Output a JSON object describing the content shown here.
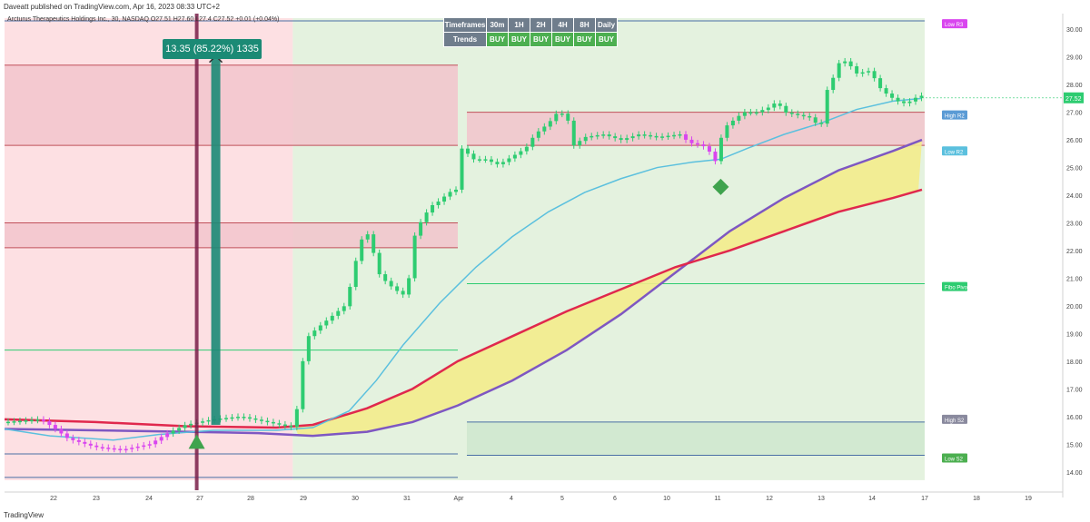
{
  "header": {
    "publisher_line": "Daveatt published on TradingView.com, Apr 16, 2023 08:33 UTC+2",
    "symbol_line": "Arcturus Therapeutics Holdings Inc., 30, NASDAQ  O27.51  H27.60  L27.4  C27.52  +0.01 (+0.04%)"
  },
  "footer": {
    "brand": "TradingView"
  },
  "trend_table": {
    "header_label": "Timeframes",
    "timeframes": [
      "30m",
      "1H",
      "2H",
      "4H",
      "8H",
      "Daily"
    ],
    "row_label": "Trends",
    "signals": [
      "BUY",
      "BUY",
      "BUY",
      "BUY",
      "BUY",
      "BUY"
    ]
  },
  "measure": {
    "label": "13.35 (85.22%) 1335"
  },
  "colors": {
    "up_candle": "#2ecc71",
    "down_candle": "#d946ef",
    "sma_line": "#5bc0de",
    "fast_band": "#e0284d",
    "slow_band": "#7e57c2",
    "band_fill": "#f3ec8c",
    "bear_zone": "#fde0e3",
    "bull_zone": "#e4f2df",
    "measure": "#1b8a75"
  },
  "chart_data": {
    "type": "candlestick",
    "x_ticks": [
      "22",
      "23",
      "24",
      "27",
      "28",
      "29",
      "30",
      "31",
      "Apr",
      "4",
      "5",
      "6",
      "10",
      "11",
      "12",
      "13",
      "14",
      "17",
      "18",
      "19"
    ],
    "y_ticks": [
      "14.00",
      "15.00",
      "16.00",
      "17.00",
      "18.00",
      "19.00",
      "20.00",
      "21.00",
      "22.00",
      "23.00",
      "24.00",
      "25.00",
      "26.00",
      "27.00",
      "28.00",
      "29.00",
      "30.00"
    ],
    "y_range": [
      13.5,
      30.4
    ],
    "last_price": "27.52",
    "pivot_labels": [
      {
        "label": "Low R3",
        "color": "#d946ef",
        "value": 30.2
      },
      {
        "label": "High R2",
        "color": "#5b9bd5",
        "value": 26.9
      },
      {
        "label": "Low R2",
        "color": "#5bc0de",
        "value": 25.6
      },
      {
        "label": "Fibo Pivot",
        "color": "#2ecc71",
        "value": 20.7
      },
      {
        "label": "High S2",
        "color": "#8a8a9e",
        "value": 15.9
      },
      {
        "label": "Low S2",
        "color": "#4caf50",
        "value": 14.5
      }
    ],
    "price_series": [
      [
        0,
        15.8
      ],
      [
        40,
        15.9
      ],
      [
        54,
        15.6
      ],
      [
        70,
        15.2
      ],
      [
        100,
        14.9
      ],
      [
        130,
        14.8
      ],
      [
        160,
        15.0
      ],
      [
        180,
        15.4
      ],
      [
        200,
        15.7
      ],
      [
        230,
        15.9
      ],
      [
        260,
        16.0
      ],
      [
        290,
        15.8
      ],
      [
        320,
        15.6
      ],
      [
        332,
        18.8
      ],
      [
        345,
        19.2
      ],
      [
        360,
        19.6
      ],
      [
        375,
        20.0
      ],
      [
        382,
        20.8
      ],
      [
        390,
        22.0
      ],
      [
        398,
        22.8
      ],
      [
        405,
        22.2
      ],
      [
        412,
        21.2
      ],
      [
        420,
        20.9
      ],
      [
        430,
        20.6
      ],
      [
        440,
        20.4
      ],
      [
        446,
        21.0
      ],
      [
        452,
        22.5
      ],
      [
        460,
        23.1
      ],
      [
        470,
        23.6
      ],
      [
        480,
        23.8
      ],
      [
        490,
        24.1
      ],
      [
        498,
        24.2
      ],
      [
        505,
        25.8
      ],
      [
        515,
        25.3
      ],
      [
        530,
        25.3
      ],
      [
        545,
        25.1
      ],
      [
        560,
        25.4
      ],
      [
        575,
        25.7
      ],
      [
        585,
        26.2
      ],
      [
        600,
        26.6
      ],
      [
        610,
        27.0
      ],
      [
        620,
        26.9
      ],
      [
        628,
        25.8
      ],
      [
        640,
        26.1
      ],
      [
        660,
        26.2
      ],
      [
        680,
        26.0
      ],
      [
        700,
        26.2
      ],
      [
        720,
        26.1
      ],
      [
        745,
        26.2
      ],
      [
        755,
        25.9
      ],
      [
        770,
        25.8
      ],
      [
        780,
        25.5
      ],
      [
        786,
        25.1
      ],
      [
        792,
        26.4
      ],
      [
        800,
        26.6
      ],
      [
        815,
        27.0
      ],
      [
        830,
        27.0
      ],
      [
        845,
        27.2
      ],
      [
        852,
        27.4
      ],
      [
        860,
        27.0
      ],
      [
        875,
        26.9
      ],
      [
        890,
        26.8
      ],
      [
        900,
        26.4
      ],
      [
        908,
        27.9
      ],
      [
        915,
        28.3
      ],
      [
        922,
        28.9
      ],
      [
        930,
        28.8
      ],
      [
        940,
        28.4
      ],
      [
        955,
        28.5
      ],
      [
        965,
        27.9
      ],
      [
        975,
        27.6
      ],
      [
        985,
        27.4
      ],
      [
        995,
        27.3
      ],
      [
        1003,
        27.5
      ],
      [
        1012,
        27.6
      ]
    ],
    "sma_series": [
      [
        0,
        15.55
      ],
      [
        50,
        15.3
      ],
      [
        120,
        15.15
      ],
      [
        170,
        15.35
      ],
      [
        230,
        15.5
      ],
      [
        300,
        15.5
      ],
      [
        340,
        15.6
      ],
      [
        380,
        16.2
      ],
      [
        410,
        17.3
      ],
      [
        440,
        18.6
      ],
      [
        480,
        20.1
      ],
      [
        520,
        21.4
      ],
      [
        560,
        22.5
      ],
      [
        600,
        23.4
      ],
      [
        640,
        24.1
      ],
      [
        680,
        24.6
      ],
      [
        720,
        25.0
      ],
      [
        760,
        25.2
      ],
      [
        790,
        25.3
      ],
      [
        820,
        25.7
      ],
      [
        860,
        26.2
      ],
      [
        900,
        26.6
      ],
      [
        940,
        27.1
      ],
      [
        980,
        27.4
      ],
      [
        1012,
        27.5
      ]
    ],
    "fast_band": [
      [
        0,
        15.9
      ],
      [
        100,
        15.8
      ],
      [
        200,
        15.65
      ],
      [
        300,
        15.6
      ],
      [
        340,
        15.7
      ],
      [
        400,
        16.3
      ],
      [
        450,
        17.0
      ],
      [
        500,
        18.0
      ],
      [
        560,
        18.9
      ],
      [
        620,
        19.8
      ],
      [
        680,
        20.6
      ],
      [
        740,
        21.4
      ],
      [
        800,
        22.0
      ],
      [
        860,
        22.7
      ],
      [
        920,
        23.4
      ],
      [
        980,
        23.9
      ],
      [
        1012,
        24.2
      ]
    ],
    "slow_band": [
      [
        0,
        15.55
      ],
      [
        100,
        15.5
      ],
      [
        200,
        15.45
      ],
      [
        280,
        15.4
      ],
      [
        340,
        15.3
      ],
      [
        400,
        15.45
      ],
      [
        450,
        15.8
      ],
      [
        500,
        16.4
      ],
      [
        560,
        17.3
      ],
      [
        620,
        18.4
      ],
      [
        680,
        19.7
      ],
      [
        740,
        21.2
      ],
      [
        800,
        22.7
      ],
      [
        860,
        23.9
      ],
      [
        920,
        24.9
      ],
      [
        980,
        25.6
      ],
      [
        1012,
        26.0
      ]
    ],
    "zones": [
      {
        "type": "bear",
        "x": [
          0,
          318
        ],
        "y": [
          13.7,
          30.4
        ]
      },
      {
        "type": "bull",
        "x": [
          318,
          1015
        ],
        "y": [
          13.7,
          30.4
        ]
      },
      {
        "type": "resistance",
        "x": [
          0,
          500
        ],
        "y": [
          25.8,
          28.7
        ]
      },
      {
        "type": "resistance",
        "x": [
          0,
          500
        ],
        "y": [
          22.1,
          23.0
        ]
      },
      {
        "type": "resistance",
        "x": [
          510,
          1015
        ],
        "y": [
          25.8,
          27.0
        ]
      },
      {
        "type": "support",
        "x": [
          510,
          1015
        ],
        "y": [
          14.6,
          15.8
        ]
      }
    ],
    "levels": [
      {
        "value": 30.3,
        "x": [
          0,
          1015
        ],
        "color": "#4a6fa5"
      },
      {
        "value": 18.4,
        "x": [
          0,
          500
        ],
        "color": "#2ecc71"
      },
      {
        "value": 20.8,
        "x": [
          510,
          1015
        ],
        "color": "#2ecc71"
      },
      {
        "value": 14.65,
        "x": [
          0,
          500
        ],
        "color": "#4a6fa5"
      },
      {
        "value": 13.8,
        "x": [
          0,
          500
        ],
        "color": "#4a6fa5"
      }
    ],
    "events": {
      "buy_arrow_x": 212,
      "diamond_x": 790,
      "diamond_y": 24.3,
      "measure_x": 233,
      "measure_from": 15.7,
      "measure_to": 29.0
    }
  }
}
